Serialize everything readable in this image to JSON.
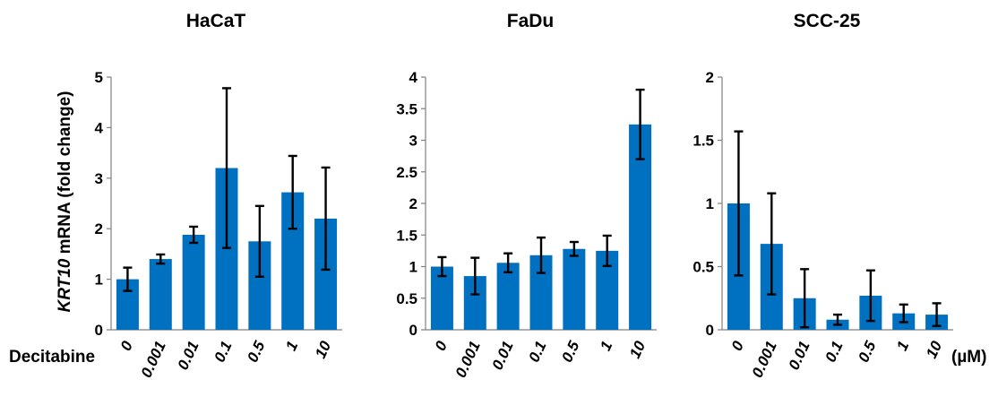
{
  "figure": {
    "ylabel_italic": "KRT10",
    "ylabel_rest": " mRNA (fold change)",
    "treatment_label": "Decitabine",
    "unit_label": "(µM)",
    "bar_color": "#0070C0"
  },
  "chart_data": [
    {
      "type": "bar",
      "title": "HaCaT",
      "categories": [
        "0",
        "0.001",
        "0.01",
        "0.1",
        "0.5",
        "1",
        "10"
      ],
      "values": [
        1.0,
        1.4,
        1.88,
        3.2,
        1.75,
        2.72,
        2.2
      ],
      "errors": [
        0.23,
        0.09,
        0.16,
        1.58,
        0.7,
        0.72,
        1.01
      ],
      "ylim": [
        0,
        5
      ],
      "yticks": [
        "0",
        "1",
        "2",
        "3",
        "4",
        "5"
      ]
    },
    {
      "type": "bar",
      "title": "FaDu",
      "categories": [
        "0",
        "0.001",
        "0.01",
        "0.1",
        "0.5",
        "1",
        "10"
      ],
      "values": [
        1.0,
        0.85,
        1.06,
        1.18,
        1.28,
        1.25,
        3.25
      ],
      "errors": [
        0.15,
        0.29,
        0.15,
        0.28,
        0.11,
        0.24,
        0.55
      ],
      "ylim": [
        0,
        4
      ],
      "yticks": [
        "0",
        "0.5",
        "1",
        "1.5",
        "2",
        "2.5",
        "3",
        "3.5",
        "4"
      ]
    },
    {
      "type": "bar",
      "title": "SCC-25",
      "categories": [
        "0",
        "0.001",
        "0.01",
        "0.1",
        "0.5",
        "1",
        "10"
      ],
      "values": [
        1.0,
        0.68,
        0.25,
        0.08,
        0.27,
        0.13,
        0.12
      ],
      "errors": [
        0.57,
        0.4,
        0.23,
        0.04,
        0.2,
        0.07,
        0.09
      ],
      "ylim": [
        0,
        2
      ],
      "yticks": [
        "0",
        "0.5",
        "1",
        "1.5",
        "2"
      ]
    }
  ]
}
